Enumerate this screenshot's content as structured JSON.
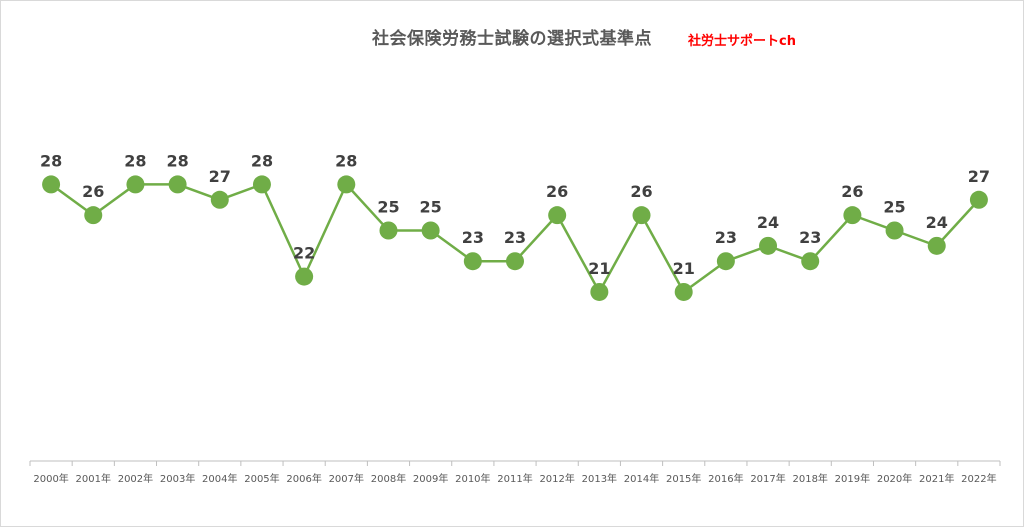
{
  "title": "社会保険労務士試験の選択式基準点",
  "brand": "社労士サポートch",
  "colors": {
    "line": "#70ad47",
    "marker": "#70ad47",
    "axis": "#bfbfbf",
    "label": "#404040"
  },
  "chart_data": {
    "type": "line",
    "title": "社会保険労務士試験の選択式基準点",
    "categories": [
      "2000年",
      "2001年",
      "2002年",
      "2003年",
      "2004年",
      "2005年",
      "2006年",
      "2007年",
      "2008年",
      "2009年",
      "2010年",
      "2011年",
      "2012年",
      "2013年",
      "2014年",
      "2015年",
      "2016年",
      "2017年",
      "2018年",
      "2019年",
      "2020年",
      "2021年",
      "2022年"
    ],
    "series": [
      {
        "values": [
          28,
          26,
          28,
          28,
          27,
          28,
          22,
          28,
          25,
          25,
          23,
          23,
          26,
          21,
          26,
          21,
          23,
          24,
          23,
          26,
          25,
          24,
          27
        ]
      }
    ],
    "ylim": [
      10,
      40
    ],
    "grid": false,
    "data_labels": true,
    "legend": "none"
  }
}
